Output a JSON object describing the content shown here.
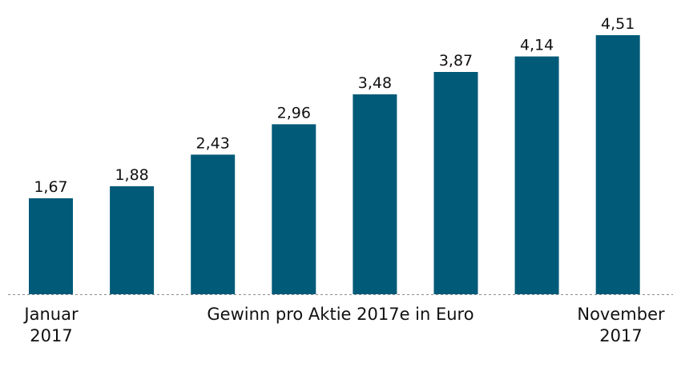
{
  "chart_data": {
    "type": "bar",
    "categories": [
      "Januar 2017",
      "",
      "",
      "",
      "",
      "",
      "",
      "November 2017"
    ],
    "values": [
      1.67,
      1.88,
      2.43,
      2.96,
      3.48,
      3.87,
      4.14,
      4.51
    ],
    "value_labels": [
      "1,67",
      "1,88",
      "2,43",
      "2,96",
      "3,48",
      "3,87",
      "4,14",
      "4,51"
    ],
    "title": "",
    "xlabel": "Gewinn pro Aktie 2017e in Euro",
    "ylabel": "",
    "ylim": [
      0,
      4.51
    ],
    "grid": false,
    "colors": {
      "bar": "#005a78",
      "baseline": "#8c8c8c"
    }
  },
  "axis": {
    "start_line1": "Januar",
    "start_line2": "2017",
    "end_line1": "November",
    "end_line2": "2017"
  }
}
